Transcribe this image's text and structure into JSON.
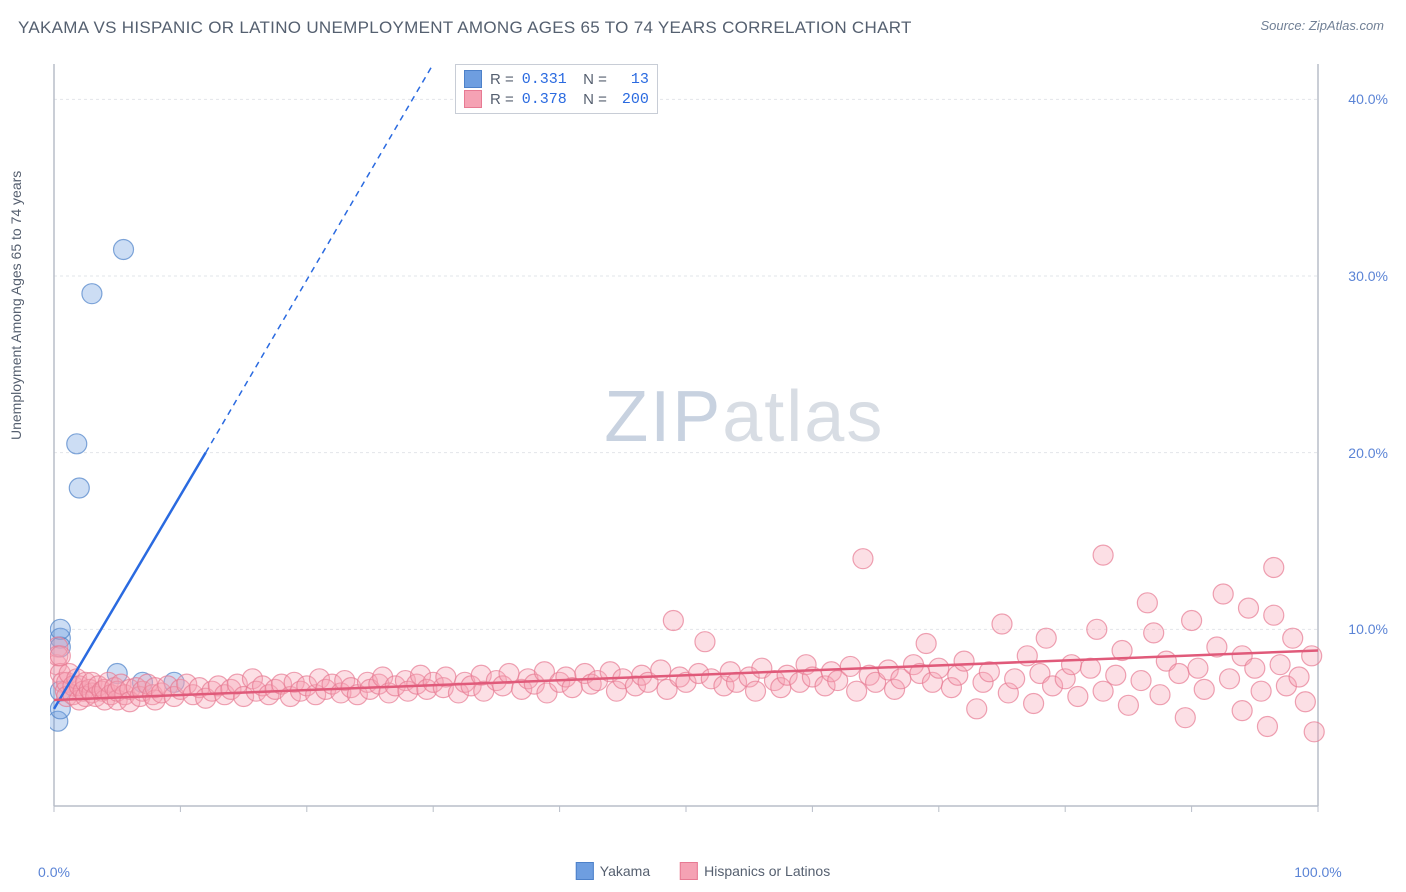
{
  "title": "YAKAMA VS HISPANIC OR LATINO UNEMPLOYMENT AMONG AGES 65 TO 74 YEARS CORRELATION CHART",
  "source": "Source: ZipAtlas.com",
  "y_axis_label": "Unemployment Among Ages 65 to 74 years",
  "watermark": {
    "part1": "ZIP",
    "part2": "atlas"
  },
  "chart": {
    "type": "scatter",
    "xlim": [
      0,
      100
    ],
    "ylim": [
      0,
      42
    ],
    "y_ticks": [
      10,
      20,
      30,
      40
    ],
    "y_tick_labels": [
      "10.0%",
      "20.0%",
      "30.0%",
      "40.0%"
    ],
    "x_tick_positions": [
      0,
      10,
      20,
      30,
      40,
      50,
      60,
      70,
      80,
      90,
      100
    ],
    "x_tick_labels": {
      "0": "0.0%",
      "100": "100.0%"
    },
    "background_color": "#ffffff",
    "grid_color": "#e2e5ea",
    "grid_dash": "3,3",
    "axis_color": "#b8bec8",
    "marker_radius": 10,
    "marker_fill_opacity": 0.35,
    "marker_stroke_opacity": 0.7,
    "marker_stroke_width": 1.2,
    "series": [
      {
        "name": "Yakama",
        "color": "#6e9ee0",
        "stroke_color": "#4d81c9",
        "trend_color": "#2a6ae0",
        "R": "0.331",
        "N": "13",
        "trend_solid": {
          "x1": 0,
          "y1": 5.5,
          "x2": 12,
          "y2": 20
        },
        "trend_dashed": {
          "x1": 12,
          "y1": 20,
          "x2": 30,
          "y2": 42
        },
        "points": [
          [
            0.3,
            4.8
          ],
          [
            0.5,
            5.5
          ],
          [
            0.5,
            6.5
          ],
          [
            0.5,
            9.5
          ],
          [
            0.5,
            9.0
          ],
          [
            0.5,
            10.0
          ],
          [
            2,
            18.0
          ],
          [
            1.8,
            20.5
          ],
          [
            3,
            29.0
          ],
          [
            5.5,
            31.5
          ],
          [
            5,
            7.5
          ],
          [
            7,
            7.0
          ],
          [
            9.5,
            7.0
          ]
        ]
      },
      {
        "name": "Hispanics or Latinos",
        "color": "#f5a2b4",
        "stroke_color": "#e77a93",
        "trend_color": "#e05a7a",
        "R": "0.378",
        "N": "200",
        "trend_solid": {
          "x1": 0,
          "y1": 6.0,
          "x2": 100,
          "y2": 8.8
        },
        "trend_dashed": null,
        "points": [
          [
            0.2,
            8
          ],
          [
            0.3,
            9
          ],
          [
            0.3,
            8.5
          ],
          [
            0.5,
            7.5
          ],
          [
            0.5,
            8.5
          ],
          [
            0.7,
            7
          ],
          [
            0.9,
            6.5
          ],
          [
            1,
            7
          ],
          [
            1,
            6.2
          ],
          [
            1.2,
            7.5
          ],
          [
            1.5,
            6.8
          ],
          [
            1.5,
            6.3
          ],
          [
            1.8,
            7.2
          ],
          [
            2,
            6
          ],
          [
            2,
            6.8
          ],
          [
            2.3,
            6.5
          ],
          [
            2.5,
            7
          ],
          [
            2.5,
            6.2
          ],
          [
            2.8,
            6.6
          ],
          [
            3,
            6.4
          ],
          [
            3,
            7
          ],
          [
            3.3,
            6.2
          ],
          [
            3.5,
            6.8
          ],
          [
            3.8,
            6.5
          ],
          [
            4,
            6
          ],
          [
            4,
            6.6
          ],
          [
            4.3,
            7
          ],
          [
            4.5,
            6.3
          ],
          [
            4.8,
            6.7
          ],
          [
            5,
            6
          ],
          [
            5,
            6.5
          ],
          [
            5.3,
            6.9
          ],
          [
            5.6,
            6.3
          ],
          [
            6,
            6.6
          ],
          [
            6,
            5.9
          ],
          [
            6.5,
            6.7
          ],
          [
            6.8,
            6.2
          ],
          [
            7,
            6.5
          ],
          [
            7.4,
            6.9
          ],
          [
            7.8,
            6.3
          ],
          [
            8,
            6
          ],
          [
            8,
            6.7
          ],
          [
            8.5,
            6.4
          ],
          [
            9,
            6.8
          ],
          [
            9.5,
            6.2
          ],
          [
            10,
            6.6
          ],
          [
            10.5,
            6.9
          ],
          [
            11,
            6.3
          ],
          [
            11.5,
            6.7
          ],
          [
            12,
            6.1
          ],
          [
            12.5,
            6.5
          ],
          [
            13,
            6.8
          ],
          [
            13.5,
            6.3
          ],
          [
            14,
            6.6
          ],
          [
            14.5,
            6.9
          ],
          [
            15,
            6.2
          ],
          [
            15.7,
            7.2
          ],
          [
            16,
            6.5
          ],
          [
            16.5,
            6.8
          ],
          [
            17,
            6.3
          ],
          [
            17.5,
            6.6
          ],
          [
            18,
            6.9
          ],
          [
            18.7,
            6.2
          ],
          [
            19,
            7
          ],
          [
            19.5,
            6.5
          ],
          [
            20,
            6.8
          ],
          [
            20.7,
            6.3
          ],
          [
            21,
            7.2
          ],
          [
            21.5,
            6.6
          ],
          [
            22,
            6.9
          ],
          [
            22.7,
            6.4
          ],
          [
            23,
            7.1
          ],
          [
            23.5,
            6.7
          ],
          [
            24,
            6.3
          ],
          [
            24.8,
            7
          ],
          [
            25,
            6.6
          ],
          [
            25.7,
            6.9
          ],
          [
            26,
            7.3
          ],
          [
            26.5,
            6.4
          ],
          [
            27,
            6.8
          ],
          [
            27.8,
            7.1
          ],
          [
            28,
            6.5
          ],
          [
            28.7,
            6.9
          ],
          [
            29,
            7.4
          ],
          [
            29.5,
            6.6
          ],
          [
            30,
            7
          ],
          [
            30.8,
            6.7
          ],
          [
            31,
            7.3
          ],
          [
            32,
            6.4
          ],
          [
            32.5,
            7
          ],
          [
            33,
            6.8
          ],
          [
            33.8,
            7.4
          ],
          [
            34,
            6.5
          ],
          [
            35,
            7.1
          ],
          [
            35.5,
            6.8
          ],
          [
            36,
            7.5
          ],
          [
            37,
            6.6
          ],
          [
            37.5,
            7.2
          ],
          [
            38,
            6.9
          ],
          [
            38.8,
            7.6
          ],
          [
            39,
            6.4
          ],
          [
            40,
            7
          ],
          [
            40.5,
            7.3
          ],
          [
            41,
            6.7
          ],
          [
            42,
            7.5
          ],
          [
            42.5,
            6.9
          ],
          [
            43,
            7.1
          ],
          [
            44,
            7.6
          ],
          [
            44.5,
            6.5
          ],
          [
            45,
            7.2
          ],
          [
            46,
            6.8
          ],
          [
            46.5,
            7.4
          ],
          [
            47,
            7
          ],
          [
            48,
            7.7
          ],
          [
            48.5,
            6.6
          ],
          [
            49,
            10.5
          ],
          [
            49.5,
            7.3
          ],
          [
            50,
            7
          ],
          [
            51,
            7.5
          ],
          [
            51.5,
            9.3
          ],
          [
            52,
            7.2
          ],
          [
            53,
            6.8
          ],
          [
            53.5,
            7.6
          ],
          [
            54,
            7
          ],
          [
            55,
            7.3
          ],
          [
            55.5,
            6.5
          ],
          [
            56,
            7.8
          ],
          [
            57,
            7.1
          ],
          [
            57.5,
            6.7
          ],
          [
            58,
            7.4
          ],
          [
            59,
            7
          ],
          [
            59.5,
            8
          ],
          [
            60,
            7.3
          ],
          [
            61,
            6.8
          ],
          [
            61.5,
            7.6
          ],
          [
            62,
            7.1
          ],
          [
            63,
            7.9
          ],
          [
            63.5,
            6.5
          ],
          [
            64,
            14
          ],
          [
            64.5,
            7.4
          ],
          [
            65,
            7
          ],
          [
            66,
            7.7
          ],
          [
            66.5,
            6.6
          ],
          [
            67,
            7.2
          ],
          [
            68,
            8
          ],
          [
            68.5,
            7.5
          ],
          [
            69,
            9.2
          ],
          [
            69.5,
            7
          ],
          [
            70,
            7.8
          ],
          [
            71,
            6.7
          ],
          [
            71.5,
            7.4
          ],
          [
            72,
            8.2
          ],
          [
            73,
            5.5
          ],
          [
            73.5,
            7
          ],
          [
            74,
            7.6
          ],
          [
            75,
            10.3
          ],
          [
            75.5,
            6.4
          ],
          [
            76,
            7.2
          ],
          [
            77,
            8.5
          ],
          [
            77.5,
            5.8
          ],
          [
            78,
            7.5
          ],
          [
            78.5,
            9.5
          ],
          [
            79,
            6.8
          ],
          [
            80,
            7.2
          ],
          [
            80.5,
            8
          ],
          [
            81,
            6.2
          ],
          [
            82,
            7.8
          ],
          [
            82.5,
            10
          ],
          [
            83,
            6.5
          ],
          [
            83,
            14.2
          ],
          [
            84,
            7.4
          ],
          [
            84.5,
            8.8
          ],
          [
            85,
            5.7
          ],
          [
            86,
            7.1
          ],
          [
            86.5,
            11.5
          ],
          [
            87,
            9.8
          ],
          [
            87.5,
            6.3
          ],
          [
            88,
            8.2
          ],
          [
            89,
            7.5
          ],
          [
            89.5,
            5
          ],
          [
            90,
            10.5
          ],
          [
            90.5,
            7.8
          ],
          [
            91,
            6.6
          ],
          [
            92,
            9
          ],
          [
            92.5,
            12
          ],
          [
            93,
            7.2
          ],
          [
            94,
            5.4
          ],
          [
            94,
            8.5
          ],
          [
            94.5,
            11.2
          ],
          [
            95,
            7.8
          ],
          [
            95.5,
            6.5
          ],
          [
            96,
            4.5
          ],
          [
            96.5,
            10.8
          ],
          [
            96.5,
            13.5
          ],
          [
            97,
            8
          ],
          [
            97.5,
            6.8
          ],
          [
            98,
            9.5
          ],
          [
            98.5,
            7.3
          ],
          [
            99,
            5.9
          ],
          [
            99.5,
            8.5
          ],
          [
            99.7,
            4.2
          ]
        ]
      }
    ]
  },
  "bottom_legend": {
    "item1_label": "Yakama",
    "item2_label": "Hispanics or Latinos"
  }
}
